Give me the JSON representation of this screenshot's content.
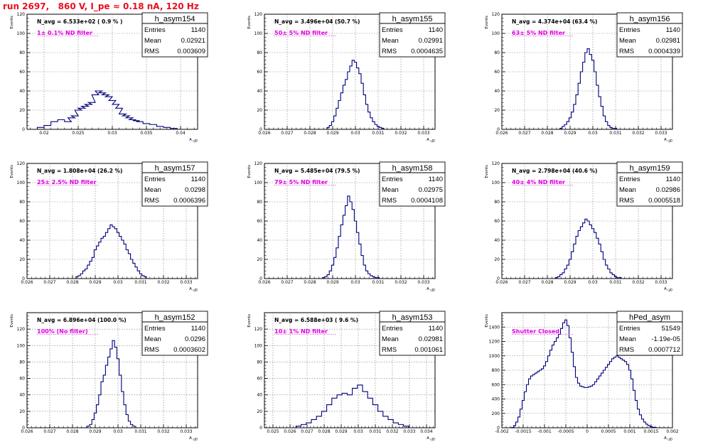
{
  "page": {
    "title": "run 2697,   860 V, I_pe ≈ 0.18 nA, 120 Hz"
  },
  "stat_labels": {
    "entries": "Entries",
    "mean": "Mean",
    "rms": "RMS"
  },
  "colors": {
    "histogram_line": "#00007d",
    "annotation": "#e100e1",
    "title": "#e8101e",
    "grid": "#7a7a7a",
    "axis": "#000000"
  },
  "chart_data": [
    {
      "type": "histogram",
      "name": "h_asym154",
      "header": "N_avg = 6.533e+02 ( 0.9 % )",
      "annotation": "1± 0.1% ND filter",
      "stats": {
        "entries": "1140",
        "mean": "0.02921",
        "rms": "0.003609"
      },
      "ylabel": "Events",
      "xlabel": "A_uJD",
      "xlim": [
        0.0175,
        0.0425
      ],
      "ylim": [
        0,
        120
      ],
      "xticks": [
        0.02,
        0.025,
        0.03,
        0.035,
        0.04
      ],
      "xtick_labels": [
        "0.02",
        "0.025",
        "0.03",
        "0.035",
        "0.04"
      ],
      "yticks": [
        0,
        20,
        40,
        60,
        80,
        100,
        120
      ],
      "ytick_labels": [
        "0",
        "20",
        "40",
        "60",
        "80",
        "100",
        "120"
      ],
      "grid": true,
      "bin_centers": [
        0.0195,
        0.0205,
        0.0215,
        0.0225,
        0.0235,
        0.024,
        0.0245,
        0.025,
        0.0255,
        0.026,
        0.0265,
        0.027,
        0.0275,
        0.028,
        0.0285,
        0.029,
        0.0295,
        0.03,
        0.0305,
        0.031,
        0.0315,
        0.032,
        0.0325,
        0.033,
        0.0335,
        0.034,
        0.035,
        0.036,
        0.037,
        0.038,
        0.039
      ],
      "values": [
        2,
        4,
        8,
        10,
        8,
        12,
        14,
        20,
        22,
        24,
        26,
        28,
        36,
        40,
        38,
        36,
        34,
        30,
        26,
        22,
        16,
        14,
        12,
        10,
        9,
        8,
        6,
        5,
        3,
        2,
        1
      ]
    },
    {
      "type": "histogram",
      "name": "h_asym155",
      "header": "N_avg = 3.496e+04 (50.7 %)",
      "annotation": "50± 5% ND filter",
      "stats": {
        "entries": "1140",
        "mean": "0.02991",
        "rms": "0.0004635"
      },
      "ylabel": "Events",
      "xlabel": "A_uJD",
      "xlim": [
        0.026,
        0.0335
      ],
      "ylim": [
        0,
        120
      ],
      "xticks": [
        0.026,
        0.027,
        0.028,
        0.029,
        0.03,
        0.031,
        0.032,
        0.033
      ],
      "xtick_labels": [
        "0.026",
        "0.027",
        "0.028",
        "0.029",
        "0.03",
        "0.031",
        "0.032",
        "0.033"
      ],
      "yticks": [
        0,
        20,
        40,
        60,
        80,
        100,
        120
      ],
      "ytick_labels": [
        "0",
        "20",
        "40",
        "60",
        "80",
        "100",
        "120"
      ],
      "grid": true,
      "bin_centers": [
        0.0288,
        0.0289,
        0.029,
        0.0291,
        0.0292,
        0.0293,
        0.0294,
        0.0295,
        0.0296,
        0.0297,
        0.0298,
        0.0299,
        0.03,
        0.0301,
        0.0302,
        0.0303,
        0.0304,
        0.0305,
        0.0306,
        0.0307,
        0.0308,
        0.0309,
        0.031,
        0.0311,
        0.0312
      ],
      "values": [
        2,
        4,
        8,
        14,
        22,
        30,
        38,
        46,
        52,
        60,
        66,
        72,
        70,
        64,
        58,
        48,
        36,
        26,
        18,
        12,
        8,
        5,
        3,
        2,
        1
      ]
    },
    {
      "type": "histogram",
      "name": "h_asym156",
      "header": "N_avg = 4.374e+04 (63.4 %)",
      "annotation": "63± 5% ND filter",
      "stats": {
        "entries": "1140",
        "mean": "0.02981",
        "rms": "0.0004339"
      },
      "ylabel": "Events",
      "xlabel": "A_uJD",
      "xlim": [
        0.026,
        0.0335
      ],
      "ylim": [
        0,
        120
      ],
      "xticks": [
        0.026,
        0.027,
        0.028,
        0.029,
        0.03,
        0.031,
        0.032,
        0.033
      ],
      "xtick_labels": [
        "0.026",
        "0.027",
        "0.028",
        "0.029",
        "0.03",
        "0.031",
        "0.032",
        "0.033"
      ],
      "yticks": [
        0,
        20,
        40,
        60,
        80,
        100,
        120
      ],
      "ytick_labels": [
        "0",
        "20",
        "40",
        "60",
        "80",
        "100",
        "120"
      ],
      "grid": true,
      "bin_centers": [
        0.0286,
        0.0287,
        0.0288,
        0.0289,
        0.029,
        0.0291,
        0.0292,
        0.0293,
        0.0294,
        0.0295,
        0.0296,
        0.0297,
        0.0298,
        0.0299,
        0.03,
        0.0301,
        0.0302,
        0.0303,
        0.0304,
        0.0305,
        0.0306,
        0.0307,
        0.0308,
        0.0309,
        0.031
      ],
      "values": [
        1,
        3,
        5,
        8,
        12,
        18,
        26,
        36,
        48,
        60,
        70,
        80,
        84,
        78,
        72,
        60,
        46,
        34,
        24,
        14,
        8,
        4,
        2,
        1,
        1
      ]
    },
    {
      "type": "histogram",
      "name": "h_asym157",
      "header": "N_avg = 1.808e+04 (26.2 %)",
      "annotation": "25± 2.5% ND filter",
      "stats": {
        "entries": "1140",
        "mean": "0.0298",
        "rms": "0.0006396"
      },
      "ylabel": "Events",
      "xlabel": "A_uJD",
      "xlim": [
        0.026,
        0.0335
      ],
      "ylim": [
        0,
        120
      ],
      "xticks": [
        0.026,
        0.027,
        0.028,
        0.029,
        0.03,
        0.031,
        0.032,
        0.033
      ],
      "xtick_labels": [
        "0.026",
        "0.027",
        "0.028",
        "0.029",
        "0.03",
        "0.031",
        "0.032",
        "0.033"
      ],
      "yticks": [
        0,
        20,
        40,
        60,
        80,
        100,
        120
      ],
      "ytick_labels": [
        "0",
        "20",
        "40",
        "60",
        "80",
        "100",
        "120"
      ],
      "grid": true,
      "bin_centers": [
        0.0282,
        0.0283,
        0.0284,
        0.0285,
        0.0286,
        0.0287,
        0.0288,
        0.0289,
        0.029,
        0.0291,
        0.0292,
        0.0293,
        0.0294,
        0.0295,
        0.0296,
        0.0297,
        0.0298,
        0.0299,
        0.03,
        0.0301,
        0.0302,
        0.0303,
        0.0304,
        0.0305,
        0.0306,
        0.0307,
        0.0308,
        0.0309,
        0.031,
        0.0311,
        0.0312
      ],
      "values": [
        2,
        3,
        5,
        8,
        10,
        14,
        18,
        22,
        30,
        34,
        38,
        42,
        44,
        48,
        52,
        56,
        54,
        52,
        48,
        44,
        40,
        36,
        30,
        26,
        20,
        16,
        12,
        8,
        5,
        3,
        2
      ]
    },
    {
      "type": "histogram",
      "name": "h_asym158",
      "header": "N_avg = 5.485e+04 (79.5 %)",
      "annotation": "79± 5% ND filter",
      "stats": {
        "entries": "1140",
        "mean": "0.02975",
        "rms": "0.0004108"
      },
      "ylabel": "Events",
      "xlabel": "A_uJD",
      "xlim": [
        0.026,
        0.0335
      ],
      "ylim": [
        0,
        120
      ],
      "xticks": [
        0.026,
        0.027,
        0.028,
        0.029,
        0.03,
        0.031,
        0.032,
        0.033
      ],
      "xtick_labels": [
        "0.026",
        "0.027",
        "0.028",
        "0.029",
        "0.03",
        "0.031",
        "0.032",
        "0.033"
      ],
      "yticks": [
        0,
        20,
        40,
        60,
        80,
        100,
        120
      ],
      "ytick_labels": [
        "0",
        "20",
        "40",
        "60",
        "80",
        "100",
        "120"
      ],
      "grid": true,
      "bin_centers": [
        0.0286,
        0.0287,
        0.0288,
        0.0289,
        0.029,
        0.0291,
        0.0292,
        0.0293,
        0.0294,
        0.0295,
        0.0296,
        0.0297,
        0.0298,
        0.0299,
        0.03,
        0.0301,
        0.0302,
        0.0303,
        0.0304,
        0.0305,
        0.0306,
        0.0307,
        0.0308,
        0.0309,
        0.031
      ],
      "values": [
        1,
        2,
        4,
        8,
        14,
        22,
        32,
        44,
        56,
        66,
        76,
        86,
        80,
        72,
        60,
        48,
        36,
        24,
        14,
        8,
        5,
        3,
        2,
        1,
        1
      ]
    },
    {
      "type": "histogram",
      "name": "h_asym159",
      "header": "N_avg = 2.798e+04 (40.6 %)",
      "annotation": "40± 4% ND filter",
      "stats": {
        "entries": "1140",
        "mean": "0.02986",
        "rms": "0.0005518"
      },
      "ylabel": "Events",
      "xlabel": "A_uJD",
      "xlim": [
        0.026,
        0.0335
      ],
      "ylim": [
        0,
        120
      ],
      "xticks": [
        0.026,
        0.027,
        0.028,
        0.029,
        0.03,
        0.031,
        0.032,
        0.033
      ],
      "xtick_labels": [
        "0.026",
        "0.027",
        "0.028",
        "0.029",
        "0.03",
        "0.031",
        "0.032",
        "0.033"
      ],
      "yticks": [
        0,
        20,
        40,
        60,
        80,
        100,
        120
      ],
      "ytick_labels": [
        "0",
        "20",
        "40",
        "60",
        "80",
        "100",
        "120"
      ],
      "grid": true,
      "bin_centers": [
        0.0284,
        0.0285,
        0.0286,
        0.0287,
        0.0288,
        0.0289,
        0.029,
        0.0291,
        0.0292,
        0.0293,
        0.0294,
        0.0295,
        0.0296,
        0.0297,
        0.0298,
        0.0299,
        0.03,
        0.0301,
        0.0302,
        0.0303,
        0.0304,
        0.0305,
        0.0306,
        0.0307,
        0.0308,
        0.0309,
        0.031,
        0.0311,
        0.0312
      ],
      "values": [
        1,
        2,
        4,
        6,
        10,
        14,
        20,
        28,
        36,
        44,
        50,
        54,
        58,
        62,
        60,
        56,
        52,
        48,
        42,
        36,
        28,
        20,
        14,
        10,
        6,
        4,
        2,
        1,
        1
      ]
    },
    {
      "type": "histogram",
      "name": "h_asym152",
      "header": "N_avg = 6.896e+04 (100.0 %)",
      "annotation": "100% (No filter)",
      "stats": {
        "entries": "1140",
        "mean": "0.0296",
        "rms": "0.0003602"
      },
      "ylabel": "Events",
      "xlabel": "A_uJD",
      "xlim": [
        0.026,
        0.0335
      ],
      "ylim": [
        0,
        140
      ],
      "xticks": [
        0.026,
        0.027,
        0.028,
        0.029,
        0.03,
        0.031,
        0.032,
        0.033
      ],
      "xtick_labels": [
        "0.026",
        "0.027",
        "0.028",
        "0.029",
        "0.03",
        "0.031",
        "0.032",
        "0.033"
      ],
      "yticks": [
        0,
        20,
        40,
        60,
        80,
        100,
        120
      ],
      "ytick_labels": [
        "0",
        "20",
        "40",
        "60",
        "80",
        "100",
        "120"
      ],
      "grid": true,
      "bin_centers": [
        0.0287,
        0.0288,
        0.0289,
        0.029,
        0.0291,
        0.0292,
        0.0293,
        0.0294,
        0.0295,
        0.0296,
        0.0297,
        0.0298,
        0.0299,
        0.03,
        0.0301,
        0.0302,
        0.0303,
        0.0304,
        0.0305,
        0.0306,
        0.0307
      ],
      "values": [
        2,
        4,
        10,
        18,
        28,
        40,
        56,
        64,
        76,
        86,
        96,
        106,
        98,
        84,
        64,
        44,
        28,
        16,
        8,
        4,
        2
      ]
    },
    {
      "type": "histogram",
      "name": "h_asym153",
      "header": "N_avg = 6.588e+03 ( 9.6 %)",
      "annotation": "10± 1% ND filter",
      "stats": {
        "entries": "1140",
        "mean": "0.02981",
        "rms": "0.001061"
      },
      "ylabel": "Events",
      "xlabel": "A_uJD",
      "xlim": [
        0.0245,
        0.0345
      ],
      "ylim": [
        0,
        140
      ],
      "xticks": [
        0.025,
        0.026,
        0.027,
        0.028,
        0.029,
        0.03,
        0.031,
        0.032,
        0.033,
        0.034
      ],
      "xtick_labels": [
        "0.025",
        "0.026",
        "0.027",
        "0.028",
        "0.029",
        "0.03",
        "0.031",
        "0.032",
        "0.033",
        "0.034"
      ],
      "yticks": [
        0,
        20,
        40,
        60,
        80,
        100,
        120
      ],
      "ytick_labels": [
        "0",
        "20",
        "40",
        "60",
        "80",
        "100",
        "120"
      ],
      "grid": true,
      "bin_centers": [
        0.0265,
        0.0268,
        0.0271,
        0.0274,
        0.0277,
        0.028,
        0.0283,
        0.0286,
        0.0289,
        0.0292,
        0.0295,
        0.0298,
        0.0301,
        0.0304,
        0.0307,
        0.031,
        0.0313,
        0.0316,
        0.0319,
        0.0322,
        0.0325,
        0.0328
      ],
      "values": [
        2,
        4,
        6,
        10,
        14,
        20,
        28,
        36,
        40,
        42,
        40,
        48,
        52,
        44,
        36,
        28,
        20,
        14,
        10,
        6,
        4,
        2
      ]
    },
    {
      "type": "histogram",
      "name": "hPed_asym",
      "header": "",
      "annotation": "Shutter Closed",
      "stats": {
        "entries": "51549",
        "mean": "-1.19e-05",
        "rms": "0.0007712"
      },
      "ylabel": "Events",
      "xlabel": "A_uJD",
      "xlim": [
        -0.002,
        0.002
      ],
      "ylim": [
        0,
        1600
      ],
      "xticks": [
        -0.002,
        -0.0015,
        -0.001,
        -0.0005,
        0,
        0.0005,
        0.001,
        0.0015,
        0.002
      ],
      "xtick_labels": [
        "-0.002",
        "-0.0015",
        "-0.001",
        "-0.0005",
        "0",
        "0.0005",
        "0.001",
        "0.0015",
        "0.002"
      ],
      "yticks": [
        0,
        200,
        400,
        600,
        800,
        1000,
        1200,
        1400
      ],
      "ytick_labels": [
        "0",
        "200",
        "400",
        "600",
        "800",
        "1000",
        "1200",
        "1400"
      ],
      "grid": true,
      "bin_centers": [
        -0.00175,
        -0.0017,
        -0.00165,
        -0.0016,
        -0.00155,
        -0.0015,
        -0.00145,
        -0.0014,
        -0.00135,
        -0.0013,
        -0.00125,
        -0.0012,
        -0.00115,
        -0.0011,
        -0.00105,
        -0.001,
        -0.00095,
        -0.0009,
        -0.00085,
        -0.0008,
        -0.00075,
        -0.0007,
        -0.00065,
        -0.0006,
        -0.00055,
        -0.0005,
        -0.00045,
        -0.0004,
        -0.00035,
        -0.0003,
        -0.00025,
        -0.0002,
        -0.00015,
        -0.0001,
        -5e-05,
        0,
        5e-05,
        0.0001,
        0.00015,
        0.0002,
        0.00025,
        0.0003,
        0.00035,
        0.0004,
        0.00045,
        0.0005,
        0.00055,
        0.0006,
        0.00065,
        0.0007,
        0.00075,
        0.0008,
        0.00085,
        0.0009,
        0.00095,
        0.001,
        0.00105,
        0.0011,
        0.00115,
        0.0012,
        0.00125,
        0.0013,
        0.00135,
        0.0014,
        0.00145,
        0.0015,
        0.00155,
        0.0016
      ],
      "values": [
        5,
        30,
        80,
        150,
        260,
        380,
        500,
        600,
        680,
        720,
        740,
        760,
        780,
        800,
        820,
        860,
        920,
        1000,
        1080,
        1150,
        1200,
        1250,
        1300,
        1380,
        1460,
        1500,
        1420,
        1250,
        1050,
        850,
        700,
        620,
        580,
        570,
        560,
        560,
        570,
        580,
        600,
        640,
        680,
        720,
        760,
        800,
        840,
        880,
        920,
        960,
        980,
        1000,
        980,
        960,
        940,
        920,
        880,
        800,
        680,
        520,
        380,
        260,
        180,
        120,
        80,
        50,
        30,
        15,
        8,
        3
      ]
    }
  ]
}
